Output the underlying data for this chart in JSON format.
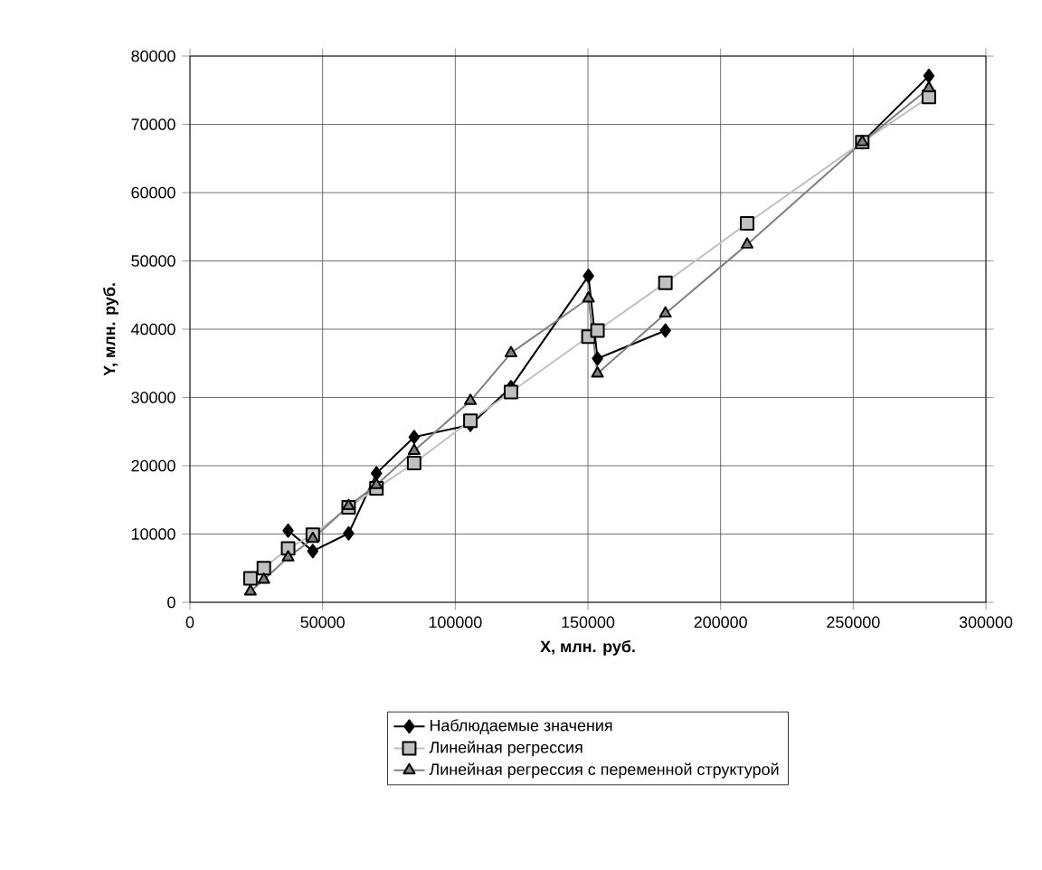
{
  "chart_data": {
    "type": "line",
    "xlabel": "X, млн. руб.",
    "ylabel": "Y, млн. руб.",
    "x": [
      22800,
      27850,
      37000,
      46300,
      59800,
      70300,
      84500,
      105700,
      121000,
      150200,
      153600,
      179200,
      210000,
      253400,
      278500
    ],
    "series": [
      {
        "name": "Наблюдаемые значения",
        "color": "#000000",
        "marker": "diamond",
        "values": [
          null,
          null,
          10500,
          7500,
          10100,
          18900,
          24200,
          26000,
          31500,
          47800,
          35700,
          39800,
          null,
          67400,
          77100
        ]
      },
      {
        "name": "Линейная регрессия",
        "color": "#c0c0c0",
        "marker": "square",
        "values": [
          3500,
          5000,
          7900,
          9900,
          13900,
          16700,
          20400,
          26600,
          30800,
          38900,
          39800,
          46800,
          55500,
          67400,
          74000
        ]
      },
      {
        "name": "Линейная регрессия с переменной структурой",
        "color": "#808080",
        "marker": "triangle",
        "values": [
          1600,
          3300,
          6600,
          9300,
          14100,
          17200,
          22200,
          29500,
          36500,
          44500,
          33500,
          42300,
          52400,
          67400,
          75300
        ]
      }
    ],
    "xlim": [
      0,
      300000
    ],
    "xticks": [
      0,
      50000,
      100000,
      150000,
      200000,
      250000,
      300000
    ],
    "ylim": [
      0,
      80000
    ],
    "yticks": [
      0,
      10000,
      20000,
      30000,
      40000,
      50000,
      60000,
      70000,
      80000
    ],
    "grid": true,
    "legend": "bottom",
    "line_style": "solid"
  }
}
